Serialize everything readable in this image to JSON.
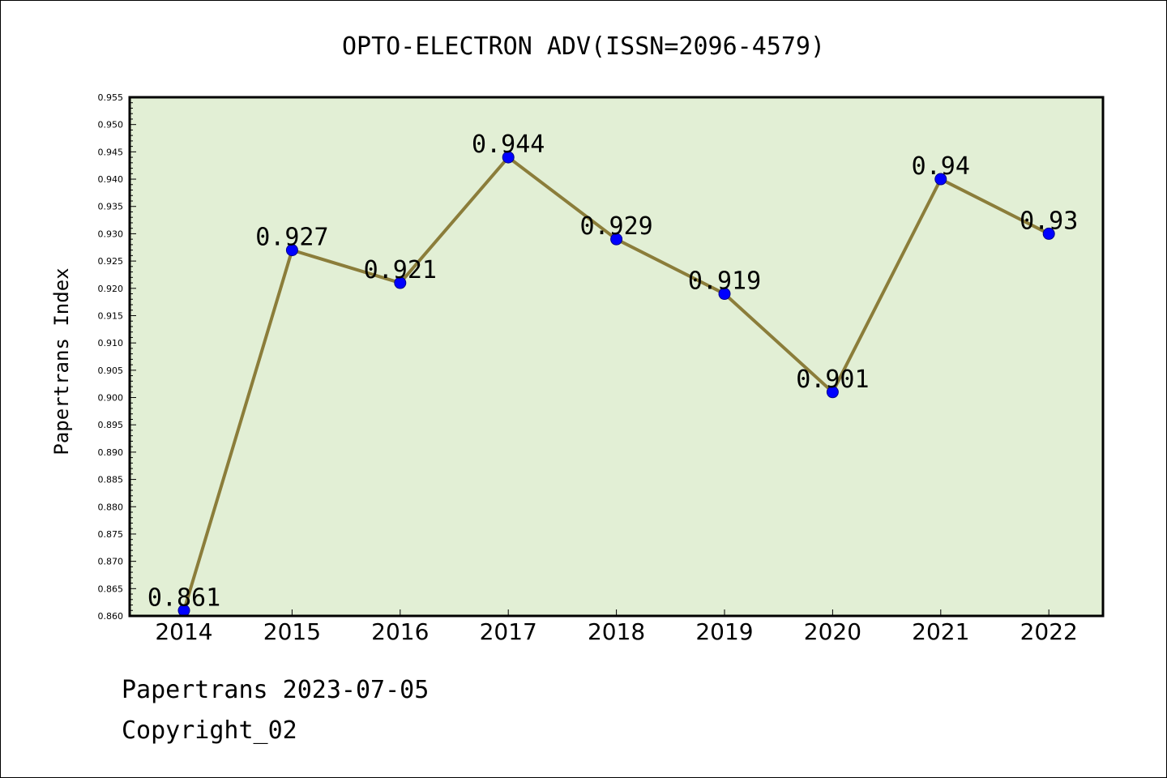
{
  "chart_data": {
    "type": "line",
    "title": "OPTO-ELECTRON ADV(ISSN=2096-4579)",
    "ylabel": "Papertrans Index",
    "xlabel": "",
    "categories": [
      "2014",
      "2015",
      "2016",
      "2017",
      "2018",
      "2019",
      "2020",
      "2021",
      "2022"
    ],
    "series": [
      {
        "values": [
          0.861,
          0.927,
          0.921,
          0.944,
          0.929,
          0.919,
          0.901,
          0.94,
          0.93
        ],
        "labels": [
          "0.861",
          "0.927",
          "0.921",
          "0.944",
          "0.929",
          "0.919",
          "0.901",
          "0.94",
          "0.93"
        ]
      }
    ],
    "ylim": [
      0.86,
      0.955
    ],
    "yticks": [
      "0.860",
      "0.865",
      "0.870",
      "0.875",
      "0.880",
      "0.885",
      "0.890",
      "0.895",
      "0.900",
      "0.905",
      "0.910",
      "0.915",
      "0.920",
      "0.925",
      "0.930",
      "0.935",
      "0.940",
      "0.945",
      "0.950",
      "0.955"
    ],
    "grid": false,
    "colors": {
      "plot_background": "#e2efd5",
      "line": "#8b7d3a",
      "marker": "#0000ff"
    }
  },
  "footer": {
    "line1": "Papertrans 2023-07-05",
    "line2": "Copyright_02"
  }
}
